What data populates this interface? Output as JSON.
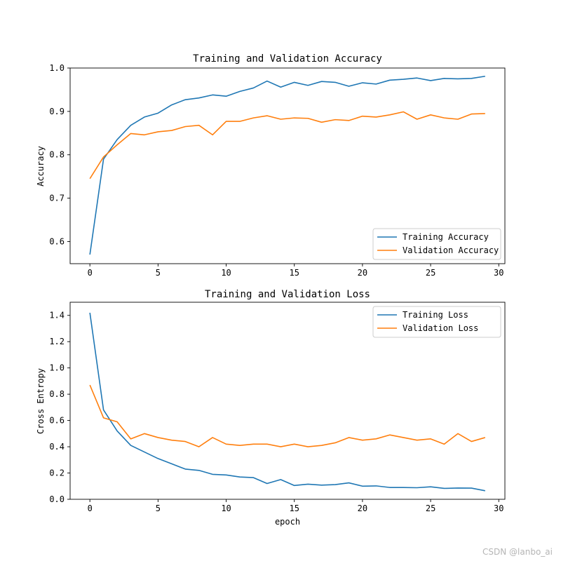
{
  "chart_data": [
    {
      "type": "line",
      "title": "Training and Validation Accuracy",
      "xlabel": "",
      "ylabel": "Accuracy",
      "xlim": [
        -1.45,
        30.45
      ],
      "ylim": [
        0.549,
        1.0
      ],
      "xticks": [
        0,
        5,
        10,
        15,
        20,
        25,
        30
      ],
      "yticks": [
        0.6,
        0.7,
        0.8,
        0.9,
        1.0
      ],
      "ytick_labels": [
        "0.6",
        "0.7",
        "0.8",
        "0.9",
        "1.0"
      ],
      "legend_position": "lower-right",
      "x": [
        0,
        1,
        2,
        3,
        4,
        5,
        6,
        7,
        8,
        9,
        10,
        11,
        12,
        13,
        14,
        15,
        16,
        17,
        18,
        19,
        20,
        21,
        22,
        23,
        24,
        25,
        26,
        27,
        28,
        29
      ],
      "series": [
        {
          "name": "Training Accuracy",
          "color": "#1f77b4",
          "values": [
            0.57,
            0.79,
            0.835,
            0.868,
            0.887,
            0.896,
            0.915,
            0.927,
            0.931,
            0.938,
            0.935,
            0.946,
            0.954,
            0.97,
            0.956,
            0.967,
            0.96,
            0.969,
            0.967,
            0.958,
            0.966,
            0.963,
            0.972,
            0.974,
            0.977,
            0.971,
            0.976,
            0.975,
            0.976,
            0.981
          ]
        },
        {
          "name": "Validation Accuracy",
          "color": "#ff7f0e",
          "values": [
            0.745,
            0.795,
            0.823,
            0.849,
            0.846,
            0.853,
            0.856,
            0.865,
            0.868,
            0.846,
            0.877,
            0.877,
            0.885,
            0.89,
            0.882,
            0.885,
            0.884,
            0.875,
            0.881,
            0.879,
            0.889,
            0.887,
            0.892,
            0.899,
            0.882,
            0.892,
            0.885,
            0.882,
            0.894,
            0.895
          ]
        }
      ]
    },
    {
      "type": "line",
      "title": "Training and Validation Loss",
      "xlabel": "epoch",
      "ylabel": "Cross Entropy",
      "xlim": [
        -1.45,
        30.45
      ],
      "ylim": [
        0.0,
        1.5
      ],
      "xticks": [
        0,
        5,
        10,
        15,
        20,
        25,
        30
      ],
      "yticks": [
        0.0,
        0.2,
        0.4,
        0.6,
        0.8,
        1.0,
        1.2,
        1.4
      ],
      "ytick_labels": [
        "0.0",
        "0.2",
        "0.4",
        "0.6",
        "0.8",
        "1.0",
        "1.2",
        "1.4"
      ],
      "legend_position": "upper-right",
      "x": [
        0,
        1,
        2,
        3,
        4,
        5,
        6,
        7,
        8,
        9,
        10,
        11,
        12,
        13,
        14,
        15,
        16,
        17,
        18,
        19,
        20,
        21,
        22,
        23,
        24,
        25,
        26,
        27,
        28,
        29
      ],
      "series": [
        {
          "name": "Training Loss",
          "color": "#1f77b4",
          "values": [
            1.42,
            0.68,
            0.52,
            0.41,
            0.36,
            0.31,
            0.27,
            0.23,
            0.22,
            0.19,
            0.185,
            0.17,
            0.165,
            0.12,
            0.15,
            0.105,
            0.115,
            0.108,
            0.112,
            0.125,
            0.1,
            0.102,
            0.09,
            0.09,
            0.088,
            0.095,
            0.083,
            0.086,
            0.085,
            0.065
          ]
        },
        {
          "name": "Validation Loss",
          "color": "#ff7f0e",
          "values": [
            0.87,
            0.62,
            0.59,
            0.46,
            0.5,
            0.47,
            0.45,
            0.44,
            0.4,
            0.47,
            0.42,
            0.41,
            0.42,
            0.42,
            0.4,
            0.42,
            0.4,
            0.41,
            0.43,
            0.47,
            0.45,
            0.46,
            0.49,
            0.47,
            0.45,
            0.46,
            0.42,
            0.5,
            0.44,
            0.47
          ]
        }
      ]
    }
  ],
  "watermark": "CSDN @lanbo_ai"
}
